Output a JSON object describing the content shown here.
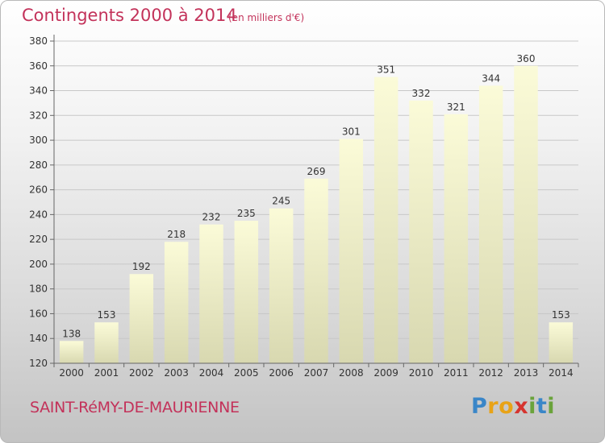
{
  "header": {
    "title": "Contingents 2000 à 2014",
    "unit": "(en milliers d'€)"
  },
  "footer": {
    "commune": "SAINT-RéMY-DE-MAURIENNE",
    "logo_text": "Proxiti",
    "logo_letters": [
      {
        "char": "P",
        "color": "#3a86c8"
      },
      {
        "char": "r",
        "color": "#e8a317"
      },
      {
        "char": "o",
        "color": "#e8a317"
      },
      {
        "char": "x",
        "color": "#d6342f"
      },
      {
        "char": "i",
        "color": "#6aa33b"
      },
      {
        "char": "t",
        "color": "#3a86c8"
      },
      {
        "char": "i",
        "color": "#6aa33b"
      }
    ]
  },
  "chart_data": {
    "type": "bar",
    "title": "Contingents 2000 à 2014",
    "subtitle": "(en milliers d'€)",
    "categories": [
      "2000",
      "2001",
      "2002",
      "2003",
      "2004",
      "2005",
      "2006",
      "2007",
      "2008",
      "2009",
      "2010",
      "2011",
      "2012",
      "2013",
      "2014"
    ],
    "values": [
      138,
      153,
      192,
      218,
      232,
      235,
      245,
      269,
      301,
      351,
      332,
      321,
      344,
      360,
      153
    ],
    "ylim": [
      120,
      380
    ],
    "yticks": [
      120,
      140,
      160,
      180,
      200,
      220,
      240,
      260,
      280,
      300,
      320,
      340,
      360,
      380
    ],
    "grid": true,
    "colors": {
      "bar_top": "#fbfbd8",
      "bar_bottom": "#d8d8b0",
      "grid": "#c8c8c8",
      "axis_text": "#333333"
    }
  }
}
